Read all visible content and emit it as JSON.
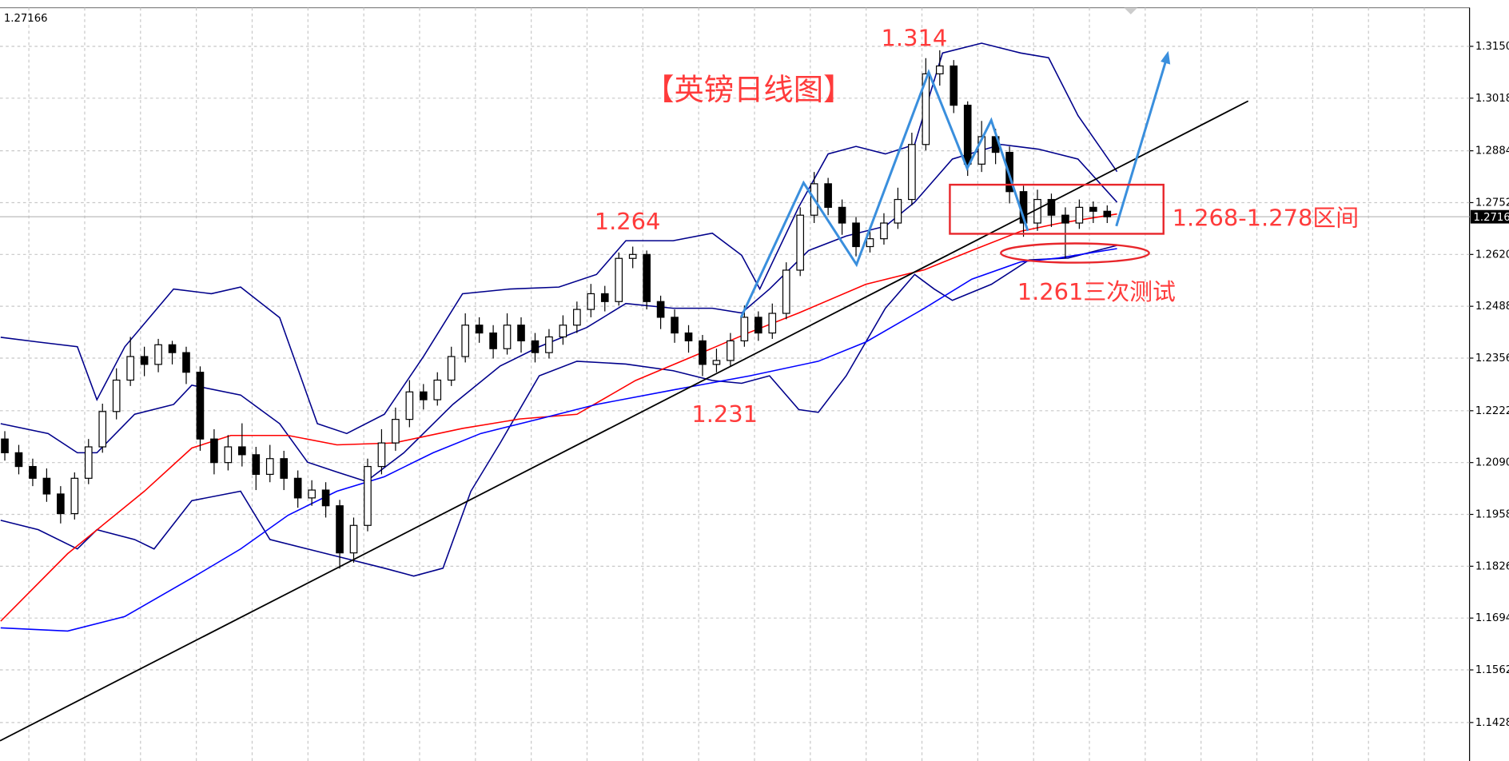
{
  "chart_data": {
    "type": "candlestick",
    "title": "【英镑日线图】",
    "symbol_price": "1.27166",
    "last_price": {
      "value": 1.2716,
      "label": "1.2716"
    },
    "ylim": [
      1.133,
      1.3268
    ],
    "yticks": [
      {
        "value": 1.315,
        "label": "1.3150"
      },
      {
        "value": 1.3018,
        "label": "1.3018"
      },
      {
        "value": 1.2884,
        "label": "1.2884"
      },
      {
        "value": 1.2752,
        "label": "1.2752"
      },
      {
        "value": 1.262,
        "label": "1.2620"
      },
      {
        "value": 1.2488,
        "label": "1.2488"
      },
      {
        "value": 1.2356,
        "label": "1.2356"
      },
      {
        "value": 1.2222,
        "label": "1.2222"
      },
      {
        "value": 1.209,
        "label": "1.2090"
      },
      {
        "value": 1.1958,
        "label": "1.1958"
      },
      {
        "value": 1.1826,
        "label": "1.1826"
      },
      {
        "value": 1.1694,
        "label": "1.1694"
      },
      {
        "value": 1.1562,
        "label": "1.1562"
      },
      {
        "value": 1.1428,
        "label": "1.1428"
      }
    ],
    "grid": true,
    "open": [
      1.215,
      1.2115,
      1.208,
      1.205,
      1.201,
      1.196,
      1.205,
      1.213,
      1.222,
      1.23,
      1.236,
      1.234,
      1.239,
      1.237,
      1.232,
      1.215,
      1.209,
      1.213,
      1.211,
      1.206,
      1.21,
      1.205,
      1.2,
      1.202,
      1.198,
      1.186,
      1.193,
      1.208,
      1.214,
      1.22,
      1.227,
      1.225,
      1.23,
      1.236,
      1.244,
      1.242,
      1.238,
      1.244,
      1.24,
      1.237,
      1.241,
      1.244,
      1.248,
      1.252,
      1.25,
      1.261,
      1.262,
      1.25,
      1.246,
      1.242,
      1.24,
      1.234,
      1.235,
      1.24,
      1.246,
      1.242,
      1.247,
      1.258,
      1.272,
      1.28,
      1.274,
      1.27,
      1.264,
      1.266,
      1.27,
      1.276,
      1.29,
      1.308,
      1.31,
      1.3,
      1.285,
      1.292,
      1.288,
      1.278,
      1.27,
      1.276,
      1.272,
      1.27,
      1.274,
      1.273
    ],
    "high": [
      1.217,
      1.2135,
      1.21,
      1.2075,
      1.203,
      1.2065,
      1.215,
      1.224,
      1.233,
      1.241,
      1.2385,
      1.2405,
      1.24,
      1.2385,
      1.2335,
      1.2175,
      1.216,
      1.219,
      1.213,
      1.2135,
      1.212,
      1.207,
      1.2045,
      1.204,
      1.1995,
      1.195,
      1.21,
      1.2175,
      1.223,
      1.23,
      1.229,
      1.232,
      1.2385,
      1.247,
      1.246,
      1.244,
      1.247,
      1.246,
      1.242,
      1.243,
      1.2465,
      1.25,
      1.2545,
      1.254,
      1.2625,
      1.264,
      1.263,
      1.2515,
      1.248,
      1.244,
      1.2415,
      1.238,
      1.242,
      1.249,
      1.2475,
      1.2495,
      1.26,
      1.274,
      1.283,
      1.2815,
      1.276,
      1.2715,
      1.269,
      1.2725,
      1.279,
      1.293,
      1.312,
      1.314,
      1.3115,
      1.301,
      1.296,
      1.294,
      1.2895,
      1.2795,
      1.2785,
      1.2775,
      1.274,
      1.276,
      1.2755,
      1.2745
    ],
    "low": [
      1.2095,
      1.206,
      1.203,
      1.199,
      1.1935,
      1.1945,
      1.2035,
      1.2115,
      1.22,
      1.2285,
      1.231,
      1.232,
      1.234,
      1.229,
      1.212,
      1.206,
      1.207,
      1.208,
      1.202,
      1.204,
      1.202,
      1.1975,
      1.198,
      1.195,
      1.182,
      1.1835,
      1.1915,
      1.206,
      1.212,
      1.218,
      1.2225,
      1.2235,
      1.2285,
      1.2345,
      1.2395,
      1.2355,
      1.2365,
      1.237,
      1.2345,
      1.2355,
      1.239,
      1.242,
      1.246,
      1.2475,
      1.249,
      1.2585,
      1.248,
      1.243,
      1.2395,
      1.237,
      1.231,
      1.232,
      1.2335,
      1.2385,
      1.24,
      1.2405,
      1.2455,
      1.2565,
      1.27,
      1.272,
      1.267,
      1.2615,
      1.2625,
      1.2645,
      1.2685,
      1.2745,
      1.2885,
      1.305,
      1.298,
      1.282,
      1.283,
      1.285,
      1.275,
      1.2665,
      1.268,
      1.269,
      1.261,
      1.2685,
      1.27,
      1.27
    ],
    "close": [
      1.2115,
      1.208,
      1.205,
      1.201,
      1.196,
      1.205,
      1.213,
      1.222,
      1.23,
      1.236,
      1.234,
      1.239,
      1.237,
      1.232,
      1.215,
      1.209,
      1.213,
      1.211,
      1.206,
      1.21,
      1.205,
      1.2,
      1.202,
      1.198,
      1.186,
      1.193,
      1.208,
      1.214,
      1.22,
      1.227,
      1.225,
      1.23,
      1.236,
      1.244,
      1.242,
      1.238,
      1.244,
      1.24,
      1.237,
      1.241,
      1.244,
      1.248,
      1.252,
      1.25,
      1.261,
      1.262,
      1.25,
      1.246,
      1.242,
      1.24,
      1.234,
      1.235,
      1.24,
      1.246,
      1.242,
      1.247,
      1.258,
      1.272,
      1.28,
      1.274,
      1.27,
      1.264,
      1.266,
      1.27,
      1.276,
      1.29,
      1.308,
      1.31,
      1.3,
      1.285,
      1.292,
      1.288,
      1.278,
      1.27,
      1.276,
      1.272,
      1.27,
      1.274,
      1.273,
      1.2716
    ],
    "candle_color": "#000000",
    "overlays": [
      {
        "color": "#00008b",
        "x": [
          -0.3,
          2.4,
          5.2,
          6.6,
          8.6,
          12.1,
          14.8,
          16.9,
          19.7,
          22.4,
          24.5,
          27.2,
          30,
          32.8,
          36.2,
          39.7,
          42.4,
          44.5,
          47.9,
          50.7,
          52.8,
          54.1,
          56.9,
          59,
          61,
          63.1,
          65.2,
          67.2,
          70,
          72.8,
          74.8,
          76.9,
          79.7
        ],
        "values": [
          1.2409,
          1.2397,
          1.2385,
          1.225,
          1.2385,
          1.2532,
          1.252,
          1.2537,
          1.2459,
          1.2189,
          1.2164,
          1.2213,
          1.236,
          1.252,
          1.2532,
          1.2537,
          1.2569,
          1.2655,
          1.2655,
          1.2674,
          1.2618,
          1.2532,
          1.2741,
          1.2876,
          1.2895,
          1.2876,
          1.29,
          1.3133,
          1.3158,
          1.3133,
          1.3121,
          1.2974,
          1.2831
        ]
      },
      {
        "color": "#00008b",
        "x": [
          -0.3,
          3.1,
          5.2,
          6.6,
          9.3,
          12.1,
          13.4,
          16.9,
          19.7,
          21.7,
          23.8,
          25.9,
          28.6,
          32.1,
          35.5,
          38.3,
          41.7,
          44.5,
          47.9,
          50.7,
          52.8,
          54.8,
          57.6,
          60.3,
          63.1,
          65.2,
          67.9,
          71.4,
          74.1,
          76.9,
          79.7
        ],
        "values": [
          1.2189,
          1.2164,
          1.2115,
          1.2115,
          1.2213,
          1.2238,
          1.2287,
          1.2262,
          1.2189,
          1.2091,
          1.2066,
          1.2042,
          1.2115,
          1.2238,
          1.2336,
          1.2385,
          1.2434,
          1.2495,
          1.2483,
          1.2483,
          1.2471,
          1.2532,
          1.263,
          1.2667,
          1.2692,
          1.2753,
          1.2863,
          1.29,
          1.2888,
          1.2863,
          1.2753
        ]
      },
      {
        "color": "#00008b",
        "x": [
          -0.3,
          2.4,
          5.2,
          6.6,
          9.3,
          10.7,
          13.4,
          16.9,
          19,
          21.7,
          24.5,
          27.2,
          29.3,
          31.4,
          33.4,
          35.5,
          38.3,
          41,
          44.5,
          47.9,
          50.7,
          52.8,
          54.8,
          56.9,
          58.3,
          60.3,
          63.1,
          65.2,
          66.6,
          67.9,
          70.7,
          73.4,
          76.2,
          79.7
        ],
        "values": [
          1.1943,
          1.1919,
          1.187,
          1.1919,
          1.1894,
          1.187,
          1.1993,
          1.2017,
          1.1894,
          1.187,
          1.1845,
          1.1821,
          1.1801,
          1.1821,
          1.2017,
          1.214,
          1.2311,
          1.2348,
          1.2341,
          1.2324,
          1.2299,
          1.2292,
          1.2311,
          1.2225,
          1.2218,
          1.2311,
          1.2483,
          1.2569,
          1.2532,
          1.2503,
          1.2544,
          1.2606,
          1.2611,
          1.2643
        ]
      },
      {
        "color": "#ff0000",
        "x": [
          -0.3,
          4.5,
          10,
          13.4,
          16.2,
          20.3,
          23.8,
          27.9,
          32.8,
          36.9,
          41,
          45.2,
          49.3,
          53.4,
          56.9,
          61.7,
          65.9,
          69.3,
          72.8,
          75.5,
          79.7
        ],
        "values": [
          1.1686,
          1.1858,
          1.2017,
          1.2127,
          1.2159,
          1.2159,
          1.2135,
          1.214,
          1.2177,
          1.2201,
          1.2213,
          1.2299,
          1.236,
          1.2422,
          1.2471,
          1.2544,
          1.2581,
          1.263,
          1.2679,
          1.2699,
          1.2723
        ]
      },
      {
        "color": "#0000ff",
        "x": [
          -0.3,
          4.5,
          8.6,
          13.4,
          16.9,
          20.3,
          23.8,
          27.2,
          30.7,
          34.1,
          38.3,
          42.4,
          47.9,
          53.4,
          58.3,
          61.7,
          65.9,
          69.3,
          72.8,
          75.5,
          79.7
        ],
        "values": [
          1.1669,
          1.1661,
          1.1698,
          1.1796,
          1.187,
          1.1956,
          1.2017,
          1.2054,
          1.2115,
          1.2164,
          1.2201,
          1.2238,
          1.2275,
          1.2311,
          1.2348,
          1.2397,
          1.2483,
          1.2557,
          1.2601,
          1.2611,
          1.2635
        ]
      }
    ],
    "annotations": [
      {
        "text": "1.314"
      },
      {
        "text": "1.264"
      },
      {
        "text": "1.231"
      },
      {
        "text": "1.268-1.278区间"
      },
      {
        "text": "1.261三次测试"
      }
    ]
  }
}
